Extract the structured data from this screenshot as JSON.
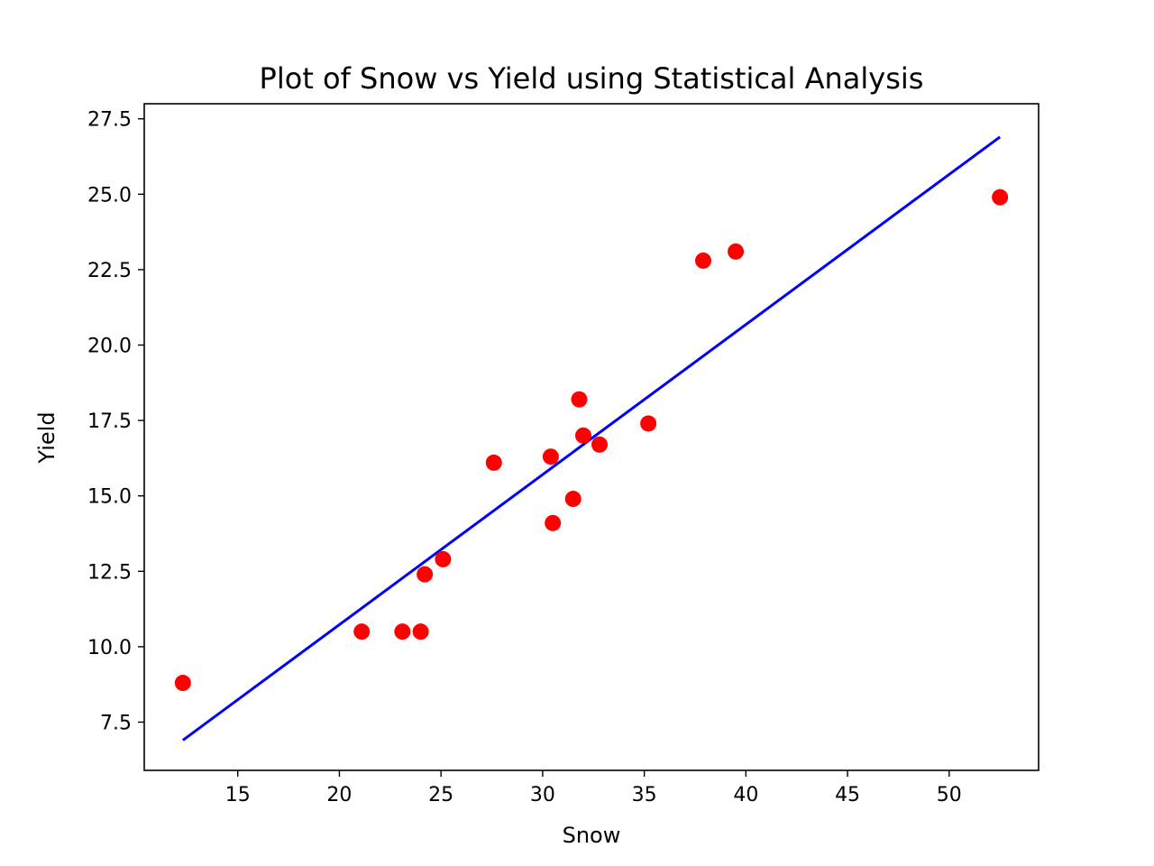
{
  "chart_data": {
    "type": "scatter",
    "title": "Plot of Snow vs Yield using Statistical Analysis",
    "xlabel": "Snow",
    "ylabel": "Yield",
    "xlim": [
      10.4,
      54.4
    ],
    "ylim": [
      5.9,
      28.0
    ],
    "xticks": [
      "15",
      "20",
      "25",
      "30",
      "35",
      "40",
      "45",
      "50"
    ],
    "xtick_values": [
      15,
      20,
      25,
      30,
      35,
      40,
      45,
      50
    ],
    "yticks": [
      "7.5",
      "10.0",
      "12.5",
      "15.0",
      "17.5",
      "20.0",
      "22.5",
      "25.0",
      "27.5"
    ],
    "ytick_values": [
      7.5,
      10.0,
      12.5,
      15.0,
      17.5,
      20.0,
      22.5,
      25.0,
      27.5
    ],
    "grid": false,
    "legend": "none",
    "series": [
      {
        "type": "scatter",
        "color": "#ff0000",
        "points": [
          {
            "x": 12.3,
            "y": 8.8
          },
          {
            "x": 21.1,
            "y": 10.5
          },
          {
            "x": 23.1,
            "y": 10.5
          },
          {
            "x": 24.0,
            "y": 10.5
          },
          {
            "x": 24.2,
            "y": 12.4
          },
          {
            "x": 25.1,
            "y": 12.9
          },
          {
            "x": 27.6,
            "y": 16.1
          },
          {
            "x": 30.4,
            "y": 16.3
          },
          {
            "x": 30.5,
            "y": 14.1
          },
          {
            "x": 31.5,
            "y": 14.9
          },
          {
            "x": 31.8,
            "y": 18.2
          },
          {
            "x": 32.0,
            "y": 17.0
          },
          {
            "x": 32.8,
            "y": 16.7
          },
          {
            "x": 35.2,
            "y": 17.4
          },
          {
            "x": 37.9,
            "y": 22.8
          },
          {
            "x": 39.5,
            "y": 23.1
          },
          {
            "x": 52.5,
            "y": 24.9
          }
        ]
      },
      {
        "type": "line",
        "color": "#0000ff",
        "points": [
          {
            "x": 12.3,
            "y": 6.9
          },
          {
            "x": 52.5,
            "y": 26.9
          }
        ]
      }
    ]
  }
}
